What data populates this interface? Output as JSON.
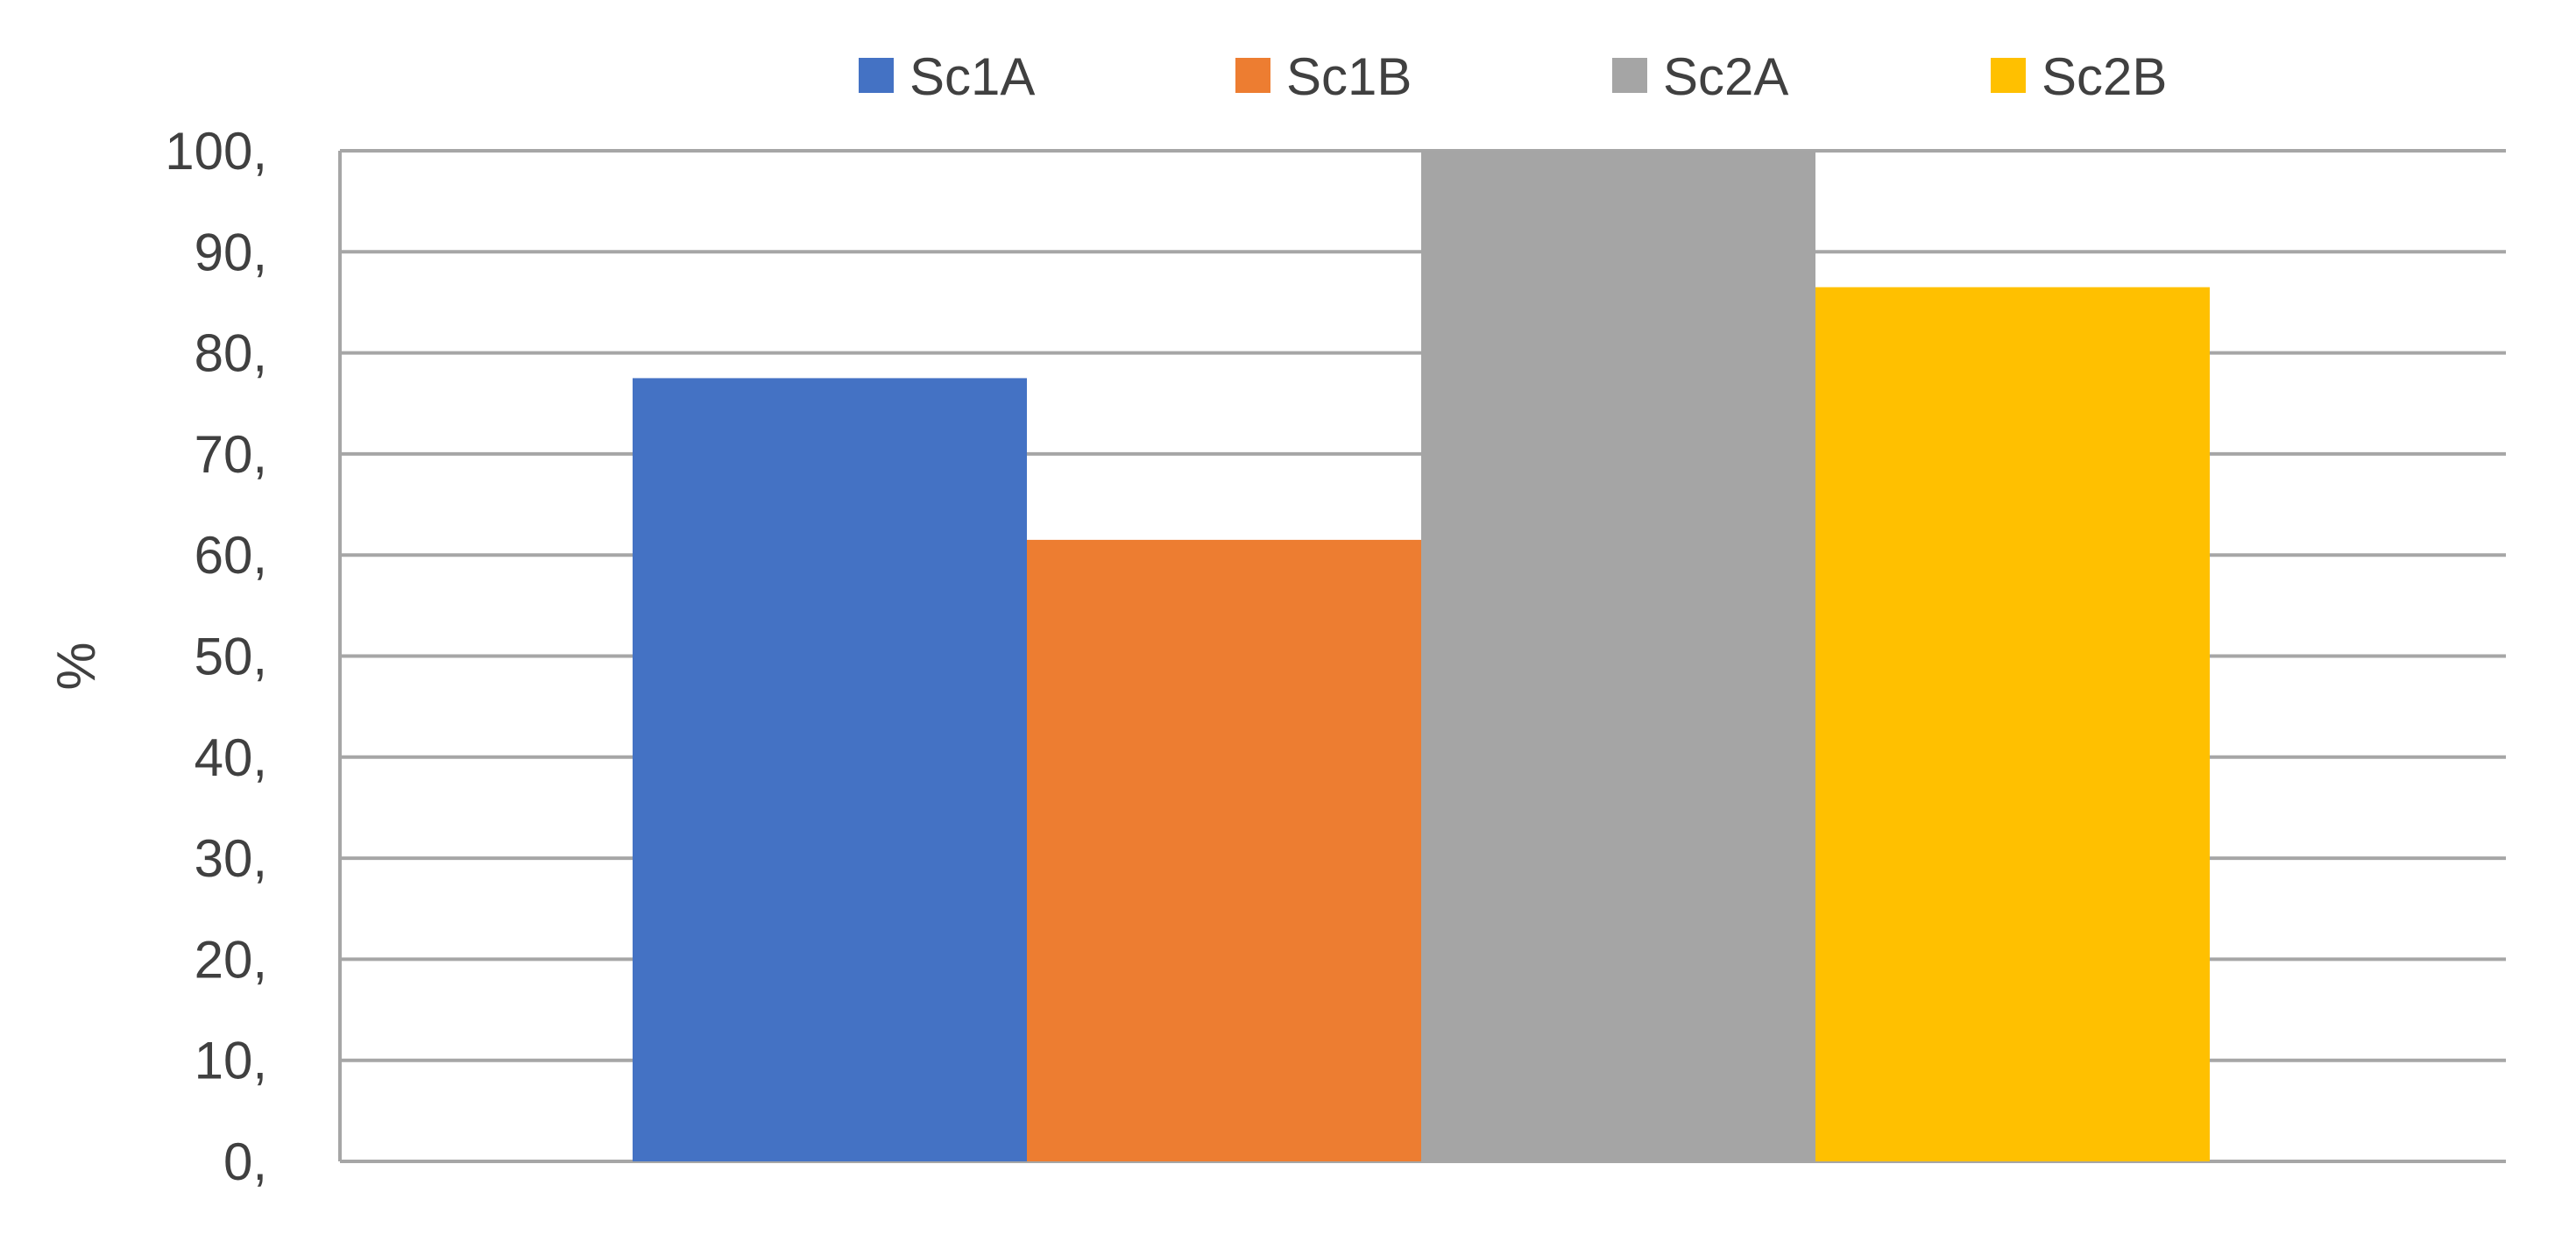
{
  "chart_data": {
    "type": "bar",
    "title": "",
    "xlabel": "",
    "ylabel": "%",
    "ylim": [
      0,
      100
    ],
    "yticks": [
      "0,",
      "10,",
      "20,",
      "30,",
      "40,",
      "50,",
      "60,",
      "70,",
      "80,",
      "90,",
      "100,"
    ],
    "grid": true,
    "legend_position": "top",
    "categories": [
      ""
    ],
    "series": [
      {
        "name": "Sc1A",
        "values": [
          77.5
        ],
        "color": "#4472C4"
      },
      {
        "name": "Sc1B",
        "values": [
          61.5
        ],
        "color": "#ED7D31"
      },
      {
        "name": "Sc2A",
        "values": [
          100
        ],
        "color": "#A5A5A5"
      },
      {
        "name": "Sc2B",
        "values": [
          86.5
        ],
        "color": "#FFC000"
      }
    ]
  }
}
